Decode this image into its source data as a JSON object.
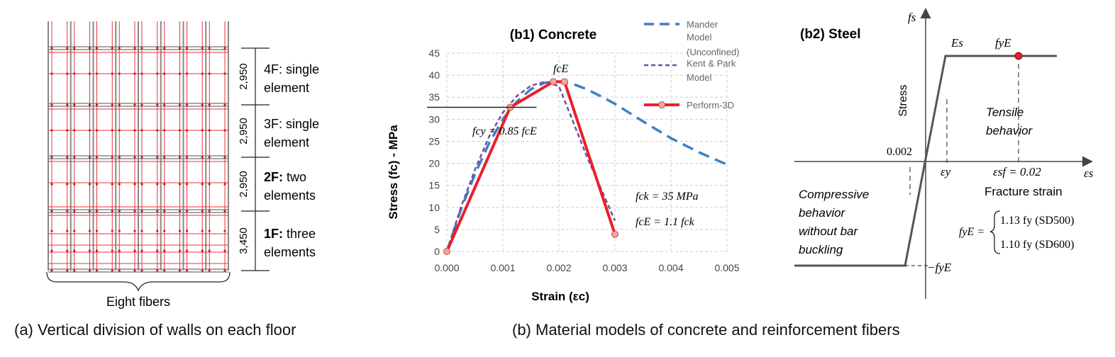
{
  "captions": {
    "a": "(a) Vertical division of walls on each floor",
    "b": "(b) Material models of concrete and reinforcement fibers"
  },
  "panel_a": {
    "floors": [
      {
        "dim": "2,950",
        "level": "4F:",
        "desc1": " single",
        "desc2": "element"
      },
      {
        "dim": "2,950",
        "level": "3F:",
        "desc1": " single",
        "desc2": "element"
      },
      {
        "dim": "2,950",
        "level": "2F:",
        "desc1": " two",
        "desc2": "elements"
      },
      {
        "dim": "3,450",
        "level": "1F:",
        "desc1": " three",
        "desc2": "elements"
      }
    ],
    "fibers_label": "Eight fibers",
    "colors": {
      "fiber": "#e8323c",
      "grid": "#888888"
    }
  },
  "chart_data": [
    {
      "type": "line",
      "title": "(b1) Concrete",
      "xlabel": "Strain (εc)",
      "ylabel": "Stress (fc) - MPa",
      "xlim": [
        0,
        0.005
      ],
      "ylim": [
        0,
        45
      ],
      "xticks": [
        "0.000",
        "0.001",
        "0.002",
        "0.003",
        "0.004",
        "0.005"
      ],
      "yticks": [
        "0",
        "5",
        "10",
        "15",
        "20",
        "25",
        "30",
        "35",
        "40",
        "45"
      ],
      "grid": true,
      "legend_position": "right",
      "series": [
        {
          "name": "Mander Model (Unconfined)",
          "style": "dashed",
          "color": "#3f7fc8",
          "x": [
            0,
            0.00025,
            0.0005,
            0.00075,
            0.001,
            0.00125,
            0.0015,
            0.00175,
            0.002,
            0.00225,
            0.0025,
            0.00275,
            0.003,
            0.0035,
            0.004,
            0.0045,
            0.005
          ],
          "y": [
            0,
            9.5,
            17.5,
            24.5,
            30,
            34,
            36.8,
            38.3,
            38.5,
            38,
            36.8,
            35.2,
            33.5,
            29.5,
            25.7,
            22.5,
            19.7
          ]
        },
        {
          "name": "Kent & Park Model",
          "style": "dashed",
          "color": "#6f4fa0",
          "x": [
            0,
            0.00025,
            0.0005,
            0.00075,
            0.001,
            0.00125,
            0.0015,
            0.00175,
            0.002,
            0.0025,
            0.003
          ],
          "y": [
            0,
            10,
            18.5,
            26,
            31.5,
            35.3,
            37.6,
            38.5,
            37.5,
            21.5,
            7
          ]
        },
        {
          "name": "Perform-3D",
          "style": "solid",
          "color": "#e8202a",
          "x": [
            0,
            0.00113,
            0.0019,
            0.0021,
            0.003
          ],
          "y": [
            0,
            32.7,
            38.5,
            38.5,
            3.9
          ]
        }
      ],
      "annotations": {
        "fcE_top": "fcE",
        "fcy_eq": "fcy = 0.85 fcE",
        "fck_eq": "fck = 35 MPa",
        "fcE_eq": "fcE = 1.1 fck",
        "fcy_value": 32.7
      }
    },
    {
      "type": "line",
      "title": "(b2) Steel",
      "ylabel": "Stress",
      "yaxis_symbol": "fs",
      "xaxis_symbol": "εs",
      "series": [
        {
          "name": "steel",
          "color": "#555555",
          "points": [
            "-fyE",
            "Es",
            "fyE"
          ]
        }
      ],
      "annotations": {
        "Es": "Es",
        "fyE": "fyE",
        "origin_strain": "0.002",
        "eps_y": "εy",
        "eps_sf": "εsf = 0.02",
        "neg_fyE": "−fyE",
        "tensile1": "Tensile",
        "tensile2": "behavior",
        "comp1": "Compressive",
        "comp2": "behavior",
        "comp3": "without bar",
        "comp4": "buckling",
        "fracture": "Fracture strain",
        "fyE_lhs": "fyE =",
        "case1": "1.13 fy (SD500)",
        "case2": "1.10 fy (SD600)"
      }
    }
  ]
}
